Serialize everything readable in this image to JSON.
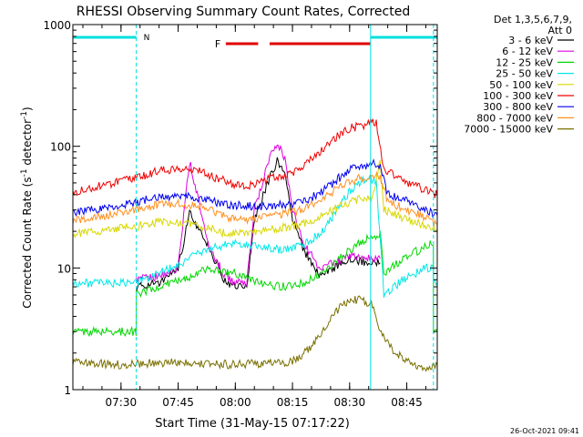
{
  "chart_data": {
    "type": "line",
    "title": "RHESSI Observing Summary Count Rates, Corrected",
    "xlabel": "Start Time (31-May-15 07:17:22)",
    "ylabel_main": "Corrected Count Rate (s",
    "ylabel_sup1": "-1",
    "ylabel_mid": " detector",
    "ylabel_sup2": "-1",
    "ylabel_end": ")",
    "yscale": "log",
    "ylim": [
      1,
      1000
    ],
    "y_ticks": [
      {
        "v": 1,
        "label": "1"
      },
      {
        "v": 10,
        "label": "10"
      },
      {
        "v": 100,
        "label": "100"
      },
      {
        "v": 1000,
        "label": "1000"
      }
    ],
    "xlim": [
      "07:17:22",
      "08:53:00"
    ],
    "x_ticks": [
      {
        "t": "07:30",
        "label": "07:30"
      },
      {
        "t": "07:45",
        "label": "07:45"
      },
      {
        "t": "08:00",
        "label": "08:00"
      },
      {
        "t": "08:15",
        "label": "08:15"
      },
      {
        "t": "08:30",
        "label": "08:30"
      },
      {
        "t": "08:45",
        "label": "08:45"
      }
    ],
    "legend_position": "top-right",
    "legend_header": [
      "Det 1,3,5,6,7,9,",
      "Att 0"
    ],
    "footer_date": "26-Oct-2021 09:41",
    "annotations": {
      "night_label": "N",
      "flare_label": "F",
      "night_segments": [
        [
          "07:17:22",
          "07:34:00"
        ],
        [
          "08:35:30",
          "08:53:00"
        ]
      ],
      "night_boundaries": [
        "07:34:00",
        "08:52:00"
      ],
      "day_boundary": "08:35:30",
      "flare_segments": [
        [
          "07:57:30",
          "08:06:00"
        ],
        [
          "08:09:00",
          "08:35:30"
        ]
      ]
    },
    "series": [
      {
        "name": "3 - 6 keV",
        "color": "#000000",
        "points": [
          [
            "07:34:00",
            7
          ],
          [
            "07:40",
            7.5
          ],
          [
            "07:45",
            10
          ],
          [
            "07:48",
            28
          ],
          [
            "07:51",
            20
          ],
          [
            "07:54",
            13
          ],
          [
            "07:57",
            8
          ],
          [
            "08:00",
            7
          ],
          [
            "08:03",
            7
          ],
          [
            "08:05",
            25
          ],
          [
            "08:09",
            55
          ],
          [
            "08:11",
            75
          ],
          [
            "08:13",
            60
          ],
          [
            "08:15",
            25
          ],
          [
            "08:18",
            14
          ],
          [
            "08:22",
            9
          ],
          [
            "08:26",
            10
          ],
          [
            "08:30",
            12
          ],
          [
            "08:35",
            11
          ],
          [
            "08:38",
            11
          ]
        ]
      },
      {
        "name": "6 - 12 keV",
        "color": "#e000e0",
        "points": [
          [
            "07:34:00",
            8
          ],
          [
            "07:40",
            8.5
          ],
          [
            "07:45",
            10
          ],
          [
            "07:47",
            40
          ],
          [
            "07:48",
            75
          ],
          [
            "07:50",
            40
          ],
          [
            "07:53",
            15
          ],
          [
            "07:57",
            9
          ],
          [
            "08:00",
            7.5
          ],
          [
            "08:03",
            7.5
          ],
          [
            "08:05",
            30
          ],
          [
            "08:09",
            80
          ],
          [
            "08:11",
            108
          ],
          [
            "08:13",
            80
          ],
          [
            "08:15",
            30
          ],
          [
            "08:18",
            16
          ],
          [
            "08:22",
            10
          ],
          [
            "08:26",
            11
          ],
          [
            "08:30",
            13
          ],
          [
            "08:35",
            12
          ],
          [
            "08:38",
            12
          ]
        ]
      },
      {
        "name": "12 - 25 keV",
        "color": "#00d800",
        "points": [
          [
            "07:17:22",
            3
          ],
          [
            "07:33:59",
            3
          ],
          [
            "07:34:00",
            6
          ],
          [
            "07:40",
            7
          ],
          [
            "07:48",
            8.5
          ],
          [
            "07:53",
            10
          ],
          [
            "08:00",
            9
          ],
          [
            "08:06",
            7.5
          ],
          [
            "08:12",
            7
          ],
          [
            "08:18",
            7.5
          ],
          [
            "08:22",
            9
          ],
          [
            "08:26",
            11
          ],
          [
            "08:30",
            14
          ],
          [
            "08:34",
            17
          ],
          [
            "08:38",
            19
          ],
          [
            "08:39",
            9
          ],
          [
            "08:44",
            12
          ],
          [
            "08:50",
            15
          ],
          [
            "08:51:59",
            16
          ],
          [
            "08:52:00",
            3
          ],
          [
            "08:53:00",
            3
          ]
        ]
      },
      {
        "name": "25 - 50 keV",
        "color": "#00e8e8",
        "points": [
          [
            "07:17:22",
            7.5
          ],
          [
            "07:34:00",
            7.5
          ],
          [
            "07:40",
            9
          ],
          [
            "07:48",
            12
          ],
          [
            "07:55",
            15
          ],
          [
            "08:00",
            16
          ],
          [
            "08:07",
            15
          ],
          [
            "08:12",
            14
          ],
          [
            "08:16",
            15
          ],
          [
            "08:20",
            17
          ],
          [
            "08:24",
            22
          ],
          [
            "08:28",
            35
          ],
          [
            "08:32",
            50
          ],
          [
            "08:35",
            55
          ],
          [
            "08:37",
            50
          ],
          [
            "08:39",
            6
          ],
          [
            "08:44",
            8
          ],
          [
            "08:50",
            10
          ],
          [
            "08:51:59",
            10
          ],
          [
            "08:52:00",
            7.5
          ],
          [
            "08:53:00",
            7.5
          ]
        ]
      },
      {
        "name": "50 - 100 keV",
        "color": "#d8d800",
        "points": [
          [
            "07:17:22",
            19
          ],
          [
            "07:34:00",
            22
          ],
          [
            "07:40",
            24
          ],
          [
            "07:45",
            24
          ],
          [
            "07:52",
            22
          ],
          [
            "07:58",
            19
          ],
          [
            "08:03",
            19
          ],
          [
            "08:10",
            21
          ],
          [
            "08:16",
            22
          ],
          [
            "08:22",
            26
          ],
          [
            "08:28",
            33
          ],
          [
            "08:33",
            37
          ],
          [
            "08:36",
            38
          ],
          [
            "08:38",
            75
          ],
          [
            "08:39",
            30
          ],
          [
            "08:44",
            26
          ],
          [
            "08:50",
            22
          ],
          [
            "08:53:00",
            21
          ]
        ]
      },
      {
        "name": "100 - 300 keV",
        "color": "#f00000",
        "points": [
          [
            "07:17:22",
            42
          ],
          [
            "07:34:00",
            55
          ],
          [
            "07:40",
            63
          ],
          [
            "07:45",
            65
          ],
          [
            "07:50",
            63
          ],
          [
            "07:55",
            55
          ],
          [
            "08:00",
            48
          ],
          [
            "08:04",
            48
          ],
          [
            "08:10",
            55
          ],
          [
            "08:15",
            60
          ],
          [
            "08:20",
            78
          ],
          [
            "08:25",
            110
          ],
          [
            "08:30",
            140
          ],
          [
            "08:34",
            150
          ],
          [
            "08:37",
            160
          ],
          [
            "08:39",
            65
          ],
          [
            "08:44",
            52
          ],
          [
            "08:50",
            44
          ],
          [
            "08:53:00",
            40
          ]
        ]
      },
      {
        "name": "300 - 800 keV",
        "color": "#0000f0",
        "points": [
          [
            "07:17:22",
            28
          ],
          [
            "07:34:00",
            35
          ],
          [
            "07:40",
            38
          ],
          [
            "07:45",
            39
          ],
          [
            "07:52",
            37
          ],
          [
            "07:58",
            33
          ],
          [
            "08:05",
            32
          ],
          [
            "08:12",
            33
          ],
          [
            "08:18",
            35
          ],
          [
            "08:24",
            45
          ],
          [
            "08:30",
            65
          ],
          [
            "08:36",
            72
          ],
          [
            "08:38",
            70
          ],
          [
            "08:40",
            40
          ],
          [
            "08:45",
            36
          ],
          [
            "08:50",
            30
          ],
          [
            "08:53:00",
            27
          ]
        ]
      },
      {
        "name": "800 - 7000 keV",
        "color": "#ff9020",
        "points": [
          [
            "07:17:22",
            24
          ],
          [
            "07:34:00",
            30
          ],
          [
            "07:40",
            33
          ],
          [
            "07:45",
            34
          ],
          [
            "07:52",
            31
          ],
          [
            "07:58",
            26
          ],
          [
            "08:04",
            25
          ],
          [
            "08:10",
            27
          ],
          [
            "08:16",
            29
          ],
          [
            "08:22",
            36
          ],
          [
            "08:28",
            48
          ],
          [
            "08:33",
            55
          ],
          [
            "08:36",
            58
          ],
          [
            "08:38",
            56
          ],
          [
            "08:40",
            35
          ],
          [
            "08:45",
            30
          ],
          [
            "08:50",
            26
          ],
          [
            "08:53:00",
            23
          ]
        ]
      },
      {
        "name": "7000 - 15000 keV",
        "color": "#7a7000",
        "points": [
          [
            "07:17:22",
            1.7
          ],
          [
            "07:30",
            1.6
          ],
          [
            "07:45",
            1.7
          ],
          [
            "08:00",
            1.6
          ],
          [
            "08:15",
            1.7
          ],
          [
            "08:20",
            2.2
          ],
          [
            "08:24",
            3.5
          ],
          [
            "08:28",
            5
          ],
          [
            "08:32",
            5.5
          ],
          [
            "08:36",
            5
          ],
          [
            "08:38",
            3
          ],
          [
            "08:42",
            2
          ],
          [
            "08:48",
            1.5
          ],
          [
            "08:53:00",
            1.6
          ]
        ]
      }
    ]
  }
}
